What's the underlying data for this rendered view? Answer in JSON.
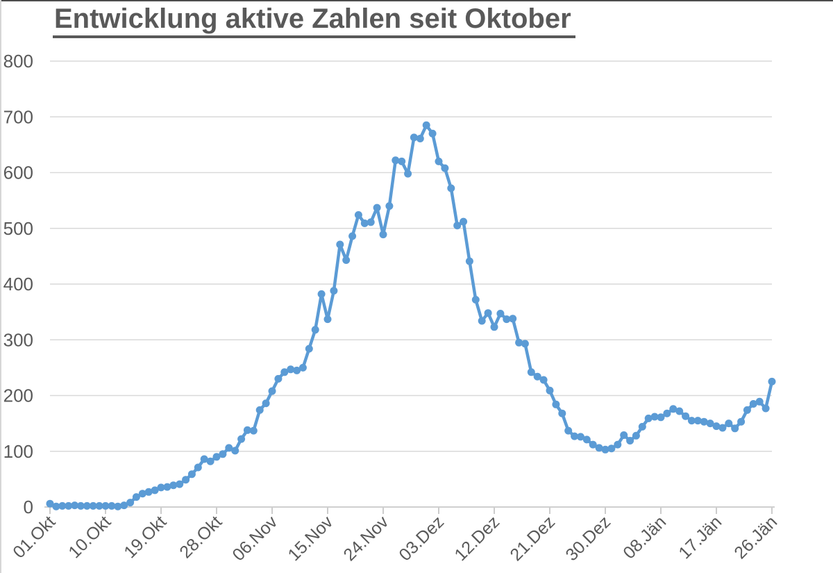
{
  "chart_data": {
    "type": "line",
    "title": "Entwicklung aktive Zahlen seit Oktober",
    "x_frequency": "daily",
    "x_tick_every_days": 9,
    "x_tick_labels": [
      "01.Okt",
      "10.Okt",
      "19.Okt",
      "28.Okt",
      "06.Nov",
      "15.Nov",
      "24.Nov",
      "03.Dez",
      "12.Dez",
      "21.Dez",
      "30.Dez",
      "08.Jän",
      "17.Jän",
      "26.Jän"
    ],
    "y_ticks": [
      0,
      100,
      200,
      300,
      400,
      500,
      600,
      700,
      800
    ],
    "ylim": [
      0,
      800
    ],
    "grid": "horizontal",
    "legend": "none",
    "values": [
      6,
      1,
      2,
      2,
      3,
      2,
      2,
      2,
      2,
      2,
      2,
      1,
      3,
      8,
      18,
      24,
      27,
      30,
      35,
      36,
      39,
      41,
      49,
      59,
      71,
      86,
      82,
      90,
      95,
      106,
      101,
      122,
      138,
      137,
      174,
      186,
      208,
      230,
      242,
      247,
      245,
      250,
      284,
      318,
      382,
      337,
      388,
      471,
      443,
      486,
      524,
      509,
      511,
      537,
      489,
      540,
      622,
      620,
      598,
      663,
      661,
      685,
      670,
      620,
      608,
      572,
      505,
      512,
      441,
      372,
      334,
      348,
      323,
      347,
      337,
      338,
      295,
      293,
      242,
      234,
      228,
      209,
      184,
      168,
      137,
      127,
      126,
      121,
      112,
      106,
      103,
      105,
      112,
      129,
      119,
      128,
      144,
      159,
      162,
      161,
      168,
      176,
      172,
      163,
      155,
      155,
      153,
      150,
      145,
      142,
      150,
      141,
      153,
      174,
      185,
      189,
      177,
      225
    ],
    "colors": {
      "series": "#5B9BD5",
      "gridline": "#D9D9D9",
      "axis": "#BFBFBF",
      "text": "#595959",
      "title": "#595959"
    }
  }
}
